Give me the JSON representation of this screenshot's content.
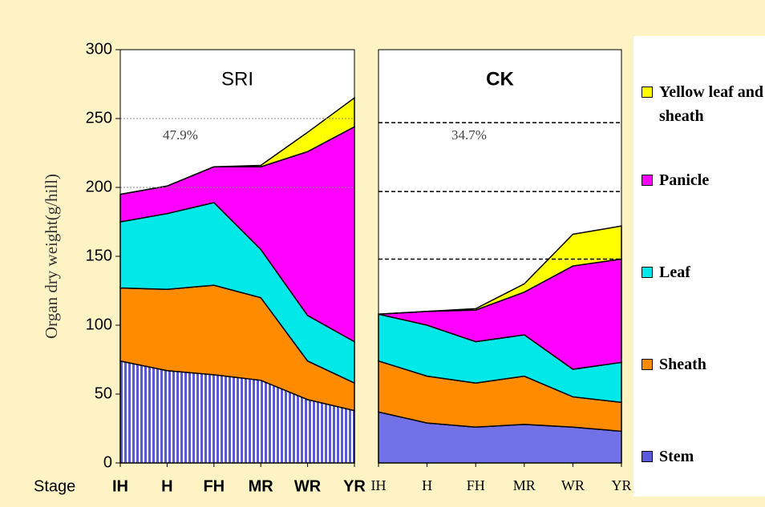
{
  "chart_data": [
    {
      "type": "area",
      "stacked": true,
      "title": "SRI",
      "y_label": "Organ dry weight(g/hill)",
      "x_label": "Stage",
      "annotation": "47.9%",
      "categories": [
        "IH",
        "H",
        "FH",
        "MR",
        "WR",
        "YR"
      ],
      "ylim": [
        0,
        300
      ],
      "yticks": [
        0,
        50,
        100,
        150,
        200,
        250,
        300
      ],
      "ref_lines": [
        250,
        200
      ],
      "series": [
        {
          "name": "Stem",
          "color": "#5a5ad8",
          "pattern": "stripes",
          "values": [
            74,
            67,
            64,
            60,
            46,
            38
          ]
        },
        {
          "name": "Sheath",
          "color": "#ff8c00",
          "values": [
            53,
            59,
            65,
            60,
            28,
            20
          ]
        },
        {
          "name": "Leaf",
          "color": "#00e8e8",
          "values": [
            48,
            55,
            60,
            35,
            33,
            30
          ]
        },
        {
          "name": "Panicle",
          "color": "#ff00ff",
          "values": [
            20,
            20,
            26,
            60,
            119,
            156
          ]
        },
        {
          "name": "Yellow leaf and sheath",
          "color": "#ffff00",
          "values": [
            0,
            0,
            0,
            1,
            14,
            21
          ]
        }
      ]
    },
    {
      "type": "area",
      "stacked": true,
      "title": "CK",
      "annotation": "34.7%",
      "categories": [
        "IH",
        "H",
        "FH",
        "MR",
        "WR",
        "YR"
      ],
      "ylim": [
        0,
        300
      ],
      "ref_lines": [
        247,
        197,
        148
      ],
      "series": [
        {
          "color": "#7272e6",
          "values": [
            37,
            29,
            26,
            28,
            26,
            23
          ]
        },
        {
          "color": "#ff8c00",
          "values": [
            37,
            34,
            32,
            35,
            22,
            21
          ]
        },
        {
          "color": "#00e8e8",
          "values": [
            34,
            37,
            30,
            30,
            20,
            29
          ]
        },
        {
          "color": "#ff00ff",
          "values": [
            0,
            10,
            23,
            31,
            75,
            75
          ]
        },
        {
          "color": "#ffff00",
          "values": [
            0,
            0,
            1,
            6,
            23,
            24
          ]
        }
      ]
    }
  ]
}
